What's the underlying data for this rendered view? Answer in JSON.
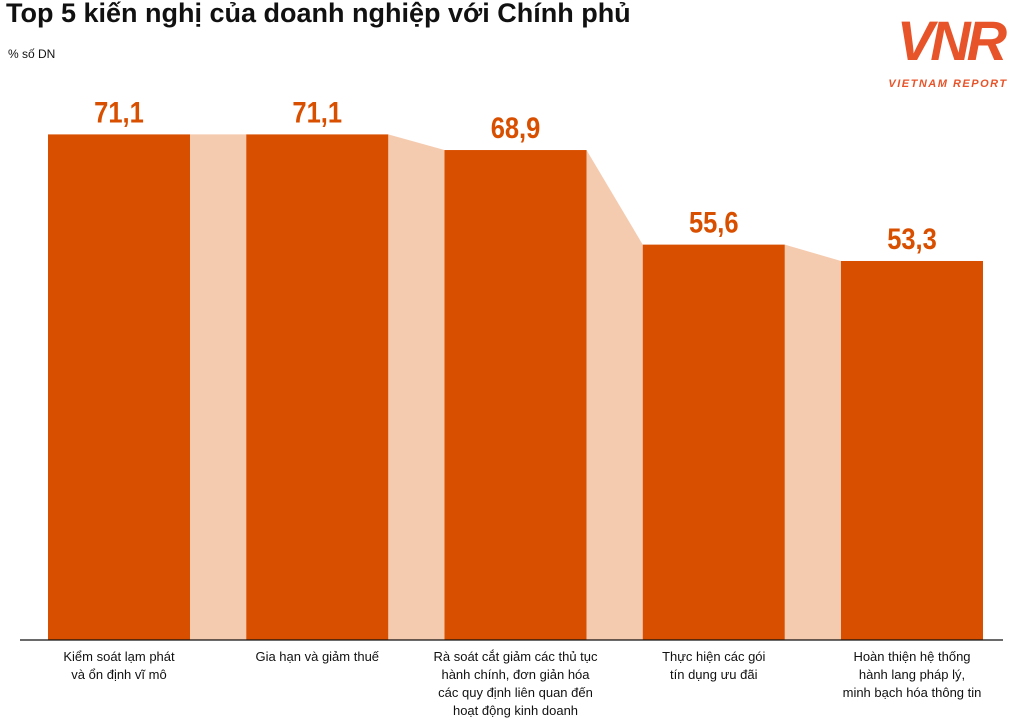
{
  "chart_data": {
    "type": "bar",
    "title": "Top 5 kiến nghị của doanh nghiệp với Chính phủ",
    "subtitle": "% số DN",
    "categories": [
      "Kiểm soát lạm phát\nvà ổn định vĩ mô",
      "Gia hạn và giảm thuế",
      "Rà soát cắt giảm các thủ tục\nhành chính, đơn giản hóa\ncác quy định liên quan đến\nhoạt động kinh doanh",
      "Thực hiện các gói\ntín dụng ưu đãi",
      "Hoàn thiện hệ thống\nhành lang pháp lý,\nminh bạch hóa thông tin"
    ],
    "values": [
      71.1,
      71.1,
      68.9,
      55.6,
      53.3
    ],
    "value_labels": [
      "71,1",
      "71,1",
      "68,9",
      "55,6",
      "53,3"
    ],
    "color": "#d94f00",
    "connector_color": "#f5cbb0",
    "ylim": [
      0,
      90
    ]
  },
  "logo": {
    "mark": "VNR",
    "text": "VIETNAM REPORT"
  }
}
